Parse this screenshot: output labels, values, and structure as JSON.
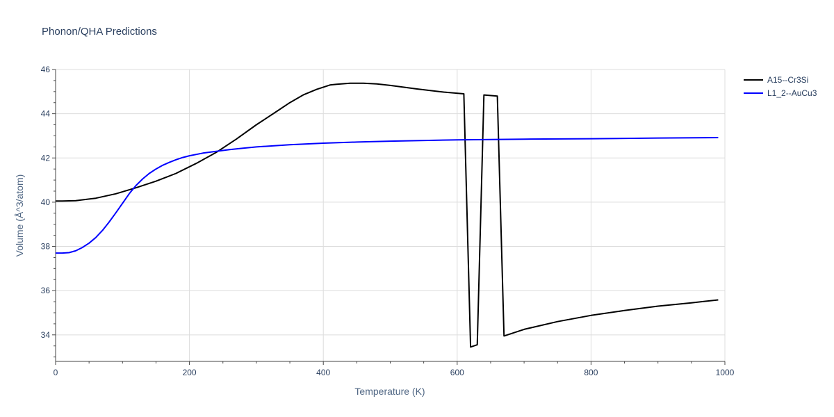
{
  "chart_data": {
    "type": "line",
    "title": "Phonon/QHA Predictions",
    "xlabel": "Temperature (K)",
    "ylabel": "Volume (Å^3/atom)",
    "xlim": [
      0,
      1000
    ],
    "ylim": [
      32.8,
      46.0
    ],
    "xticks": [
      0,
      200,
      400,
      600,
      800,
      1000
    ],
    "yticks": [
      34,
      36,
      38,
      40,
      42,
      44,
      46
    ],
    "x_minor_step": 50,
    "y_minor_step": 0.5,
    "grid": true,
    "legend_position": "top-right",
    "series": [
      {
        "name": "A15--Cr3Si",
        "color": "#000000",
        "x": [
          0,
          10,
          30,
          60,
          90,
          120,
          150,
          180,
          210,
          240,
          270,
          300,
          330,
          350,
          370,
          390,
          410,
          420,
          440,
          460,
          480,
          500,
          540,
          580,
          610,
          620,
          630,
          640,
          660,
          670,
          700,
          750,
          800,
          850,
          900,
          950,
          990
        ],
        "y": [
          40.05,
          40.05,
          40.07,
          40.18,
          40.38,
          40.65,
          40.95,
          41.3,
          41.75,
          42.25,
          42.85,
          43.5,
          44.1,
          44.5,
          44.85,
          45.1,
          45.3,
          45.33,
          45.38,
          45.38,
          45.35,
          45.28,
          45.12,
          44.98,
          44.9,
          33.45,
          33.55,
          44.85,
          44.8,
          33.95,
          34.25,
          34.6,
          34.88,
          35.1,
          35.3,
          35.45,
          35.58
        ]
      },
      {
        "name": "L1_2--AuCu3",
        "color": "#0000ff",
        "x": [
          0,
          10,
          20,
          30,
          40,
          50,
          60,
          70,
          80,
          90,
          100,
          110,
          120,
          130,
          140,
          150,
          160,
          170,
          180,
          190,
          200,
          220,
          240,
          260,
          280,
          300,
          350,
          400,
          450,
          500,
          600,
          700,
          800,
          900,
          990
        ],
        "y": [
          37.7,
          37.7,
          37.72,
          37.8,
          37.95,
          38.15,
          38.4,
          38.72,
          39.1,
          39.52,
          39.95,
          40.38,
          40.75,
          41.05,
          41.3,
          41.5,
          41.67,
          41.8,
          41.92,
          42.02,
          42.1,
          42.22,
          42.3,
          42.38,
          42.44,
          42.5,
          42.6,
          42.67,
          42.72,
          42.76,
          42.82,
          42.85,
          42.87,
          42.9,
          42.92
        ]
      }
    ]
  }
}
